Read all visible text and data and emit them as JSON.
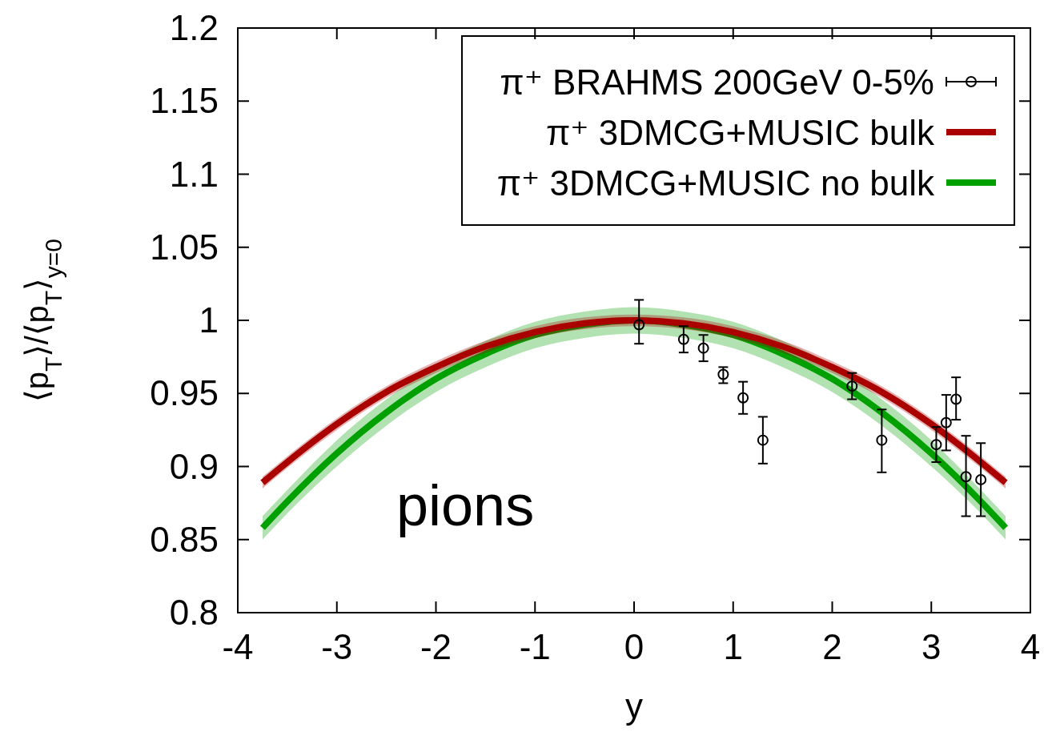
{
  "chart_data": {
    "type": "line",
    "xlabel": "y",
    "ylabel": "⟨p$_{T}$⟩/⟨p$_{T}$⟩$_{y=0}$",
    "annotations": [
      "pions"
    ],
    "xlim": [
      -4,
      4
    ],
    "xticks": [
      -4,
      -3,
      -2,
      -1,
      0,
      1,
      2,
      3,
      4
    ],
    "ylim": [
      0.8,
      1.2
    ],
    "yticks": [
      0.8,
      0.85,
      0.9,
      0.95,
      1,
      1.05,
      1.1,
      1.15,
      1.2
    ],
    "grid": false,
    "legend": "top right",
    "line_style": "solid",
    "series": [
      {
        "name": "π⁺ BRAHMS 200GeV 0-5%",
        "type": "scatter",
        "marker": "circle",
        "color": "#000000",
        "x": [
          0.05,
          0.5,
          0.7,
          0.9,
          1.1,
          1.3,
          2.2,
          2.5,
          3.05,
          3.15,
          3.25,
          3.35,
          3.5
        ],
        "values": [
          0.997,
          0.987,
          0.981,
          0.963,
          0.947,
          0.918,
          0.955,
          0.918,
          0.915,
          0.93,
          0.946,
          0.893,
          0.891
        ],
        "errors": [
          [
            0.984,
            1.014
          ],
          [
            0.978,
            0.996
          ],
          [
            0.972,
            0.99
          ],
          [
            0.957,
            0.968
          ],
          [
            0.936,
            0.958
          ],
          [
            0.902,
            0.934
          ],
          [
            0.946,
            0.964
          ],
          [
            0.896,
            0.939
          ],
          [
            0.903,
            0.927
          ],
          [
            0.911,
            0.949
          ],
          [
            0.932,
            0.961
          ],
          [
            0.866,
            0.921
          ],
          [
            0.866,
            0.916
          ]
        ]
      },
      {
        "name": "π⁺ 3DMCG+MUSIC bulk",
        "type": "line",
        "color": "#aa0000",
        "x": [
          -3.75,
          -3.5,
          -3,
          -2.5,
          -2,
          -1.5,
          -1,
          -0.5,
          0,
          0.5,
          1,
          1.5,
          2,
          2.5,
          3,
          3.5,
          3.75
        ],
        "values": [
          0.889,
          0.903,
          0.929,
          0.951,
          0.968,
          0.982,
          0.992,
          0.998,
          1,
          0.998,
          0.992,
          0.982,
          0.968,
          0.951,
          0.929,
          0.903,
          0.889
        ],
        "lower": [
          0.885,
          0.899,
          0.925,
          0.947,
          0.964,
          0.978,
          0.988,
          0.994,
          0.996,
          0.994,
          0.988,
          0.978,
          0.964,
          0.947,
          0.925,
          0.899,
          0.885
        ],
        "upper": [
          0.893,
          0.907,
          0.933,
          0.955,
          0.972,
          0.986,
          0.996,
          1.002,
          1.004,
          1.002,
          0.996,
          0.986,
          0.972,
          0.955,
          0.933,
          0.907,
          0.893
        ]
      },
      {
        "name": "π⁺ 3DMCG+MUSIC no bulk",
        "type": "line",
        "color": "#00a000",
        "x": [
          -3.75,
          -3.5,
          -3,
          -2.5,
          -2,
          -1.5,
          -1,
          -0.5,
          0,
          0.5,
          1,
          1.5,
          2,
          2.5,
          3,
          3.5,
          3.75
        ],
        "values": [
          0.858,
          0.876,
          0.909,
          0.937,
          0.96,
          0.977,
          0.99,
          0.997,
          1,
          0.997,
          0.99,
          0.977,
          0.96,
          0.937,
          0.909,
          0.876,
          0.858
        ],
        "lower": [
          0.85,
          0.868,
          0.9,
          0.928,
          0.951,
          0.968,
          0.981,
          0.988,
          0.991,
          0.988,
          0.981,
          0.968,
          0.951,
          0.928,
          0.9,
          0.868,
          0.85
        ],
        "upper": [
          0.866,
          0.884,
          0.918,
          0.946,
          0.969,
          0.986,
          0.999,
          1.006,
          1.009,
          1.006,
          0.999,
          0.986,
          0.969,
          0.946,
          0.918,
          0.884,
          0.866
        ]
      }
    ]
  }
}
